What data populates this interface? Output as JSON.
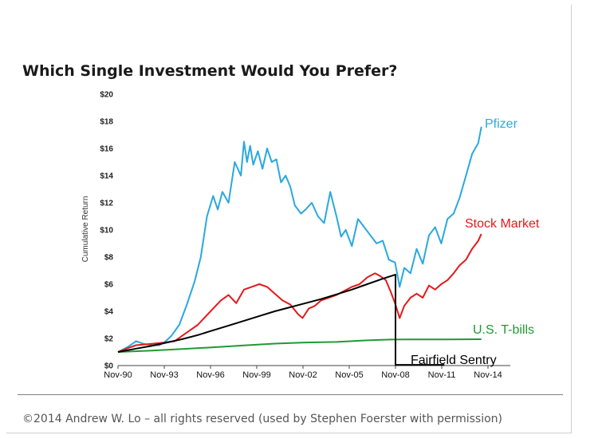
{
  "slide": {
    "title": "Which Single Investment Would You Prefer?",
    "footer": "©2014 Andrew W. Lo – all rights reserved (used by Stephen Foerster with permission)"
  },
  "chart_data": {
    "type": "line",
    "title": "Which Single Investment Would You Prefer?",
    "xlabel": "",
    "ylabel": "Cumulative Return",
    "x_ticks": [
      "Nov-90",
      "Nov-93",
      "Nov-96",
      "Nov-99",
      "Nov-02",
      "Nov-05",
      "Nov-08",
      "Nov-11",
      "Nov-14"
    ],
    "y_ticks": [
      "$0",
      "$2",
      "$4",
      "$6",
      "$8",
      "$10",
      "$12",
      "$14",
      "$16",
      "$18",
      "$20"
    ],
    "xlim": [
      1990.83,
      2014.83
    ],
    "ylim": [
      0,
      20
    ],
    "grid": false,
    "legend": "labels at line ends",
    "series": [
      {
        "name": "Pfizer",
        "color": "#2aa8df",
        "x": [
          1990.83,
          1991.5,
          1992.0,
          1992.5,
          1993.0,
          1993.5,
          1993.83,
          1994.3,
          1994.8,
          1995.3,
          1995.8,
          1996.2,
          1996.6,
          1997.0,
          1997.3,
          1997.6,
          1998.0,
          1998.4,
          1998.8,
          1999.0,
          1999.2,
          1999.4,
          1999.6,
          1999.9,
          2000.2,
          2000.5,
          2000.8,
          2001.1,
          2001.4,
          2001.7,
          2002.0,
          2002.3,
          2002.7,
          2003.0,
          2003.4,
          2003.8,
          2004.2,
          2004.6,
          2005.0,
          2005.3,
          2005.6,
          2006.0,
          2006.4,
          2006.8,
          2007.2,
          2007.6,
          2008.0,
          2008.4,
          2008.8,
          2009.1,
          2009.4,
          2009.8,
          2010.2,
          2010.6,
          2011.0,
          2011.4,
          2011.8,
          2012.2,
          2012.6,
          2013.0,
          2013.4,
          2013.8,
          2014.2,
          2014.4
        ],
        "y": [
          1.0,
          1.4,
          1.8,
          1.6,
          1.5,
          1.5,
          1.7,
          2.2,
          3.0,
          4.5,
          6.2,
          8.0,
          11.0,
          12.5,
          11.5,
          12.8,
          12.0,
          15.0,
          14.0,
          16.5,
          15.0,
          16.2,
          14.8,
          15.8,
          14.5,
          16.0,
          15.0,
          15.2,
          13.5,
          14.0,
          13.2,
          11.8,
          11.2,
          11.5,
          12.0,
          11.0,
          10.5,
          12.8,
          11.0,
          9.5,
          10.0,
          8.8,
          10.8,
          10.2,
          9.6,
          9.0,
          9.2,
          7.8,
          7.6,
          5.8,
          7.2,
          6.8,
          8.6,
          7.5,
          9.6,
          10.2,
          9.0,
          10.8,
          11.2,
          12.4,
          14.0,
          15.6,
          16.4,
          17.6
        ]
      },
      {
        "name": "Stock Market",
        "color": "#e3191b",
        "x": [
          1990.83,
          1991.5,
          1992.0,
          1993.0,
          1993.83,
          1994.5,
          1995.0,
          1995.5,
          1996.0,
          1996.5,
          1997.0,
          1997.5,
          1998.0,
          1998.5,
          1999.0,
          1999.5,
          2000.0,
          2000.5,
          2001.0,
          2001.5,
          2002.0,
          2002.5,
          2002.8,
          2003.2,
          2003.6,
          2004.0,
          2004.5,
          2005.0,
          2005.5,
          2006.0,
          2006.5,
          2007.0,
          2007.5,
          2007.83,
          2008.2,
          2008.5,
          2008.8,
          2009.1,
          2009.4,
          2009.8,
          2010.2,
          2010.6,
          2011.0,
          2011.4,
          2011.8,
          2012.2,
          2012.6,
          2013.0,
          2013.4,
          2013.8,
          2014.2,
          2014.4
        ],
        "y": [
          1.0,
          1.3,
          1.5,
          1.6,
          1.7,
          1.8,
          2.2,
          2.6,
          3.0,
          3.6,
          4.2,
          4.8,
          5.2,
          4.6,
          5.6,
          5.8,
          6.0,
          5.8,
          5.3,
          4.8,
          4.5,
          3.8,
          3.5,
          4.2,
          4.4,
          4.8,
          5.0,
          5.2,
          5.5,
          5.8,
          6.0,
          6.5,
          6.8,
          6.6,
          6.3,
          5.5,
          4.6,
          3.5,
          4.4,
          5.0,
          5.3,
          5.0,
          5.9,
          5.6,
          6.0,
          6.3,
          6.8,
          7.4,
          7.8,
          8.6,
          9.2,
          9.7
        ]
      },
      {
        "name": "Fairfield Sentry",
        "color": "#000000",
        "x": [
          1990.83,
          1992.0,
          1993.0,
          1994.0,
          1995.0,
          1996.0,
          1997.0,
          1998.0,
          1999.0,
          2000.0,
          2001.0,
          2002.0,
          2003.0,
          2004.0,
          2005.0,
          2006.0,
          2007.0,
          2008.0,
          2008.83,
          2008.83,
          2012.0
        ],
        "y": [
          1.0,
          1.25,
          1.45,
          1.7,
          1.95,
          2.25,
          2.6,
          2.95,
          3.3,
          3.65,
          4.0,
          4.3,
          4.6,
          4.9,
          5.25,
          5.6,
          6.0,
          6.4,
          6.7,
          0.05,
          0.05
        ]
      },
      {
        "name": "U.S. T-bills",
        "color": "#1f9a34",
        "x": [
          1990.83,
          1993.0,
          1995.0,
          1997.0,
          1999.0,
          2001.0,
          2003.0,
          2005.0,
          2007.0,
          2008.5,
          2010.0,
          2012.0,
          2014.4
        ],
        "y": [
          1.0,
          1.1,
          1.22,
          1.35,
          1.48,
          1.62,
          1.7,
          1.74,
          1.86,
          1.92,
          1.93,
          1.93,
          1.94
        ]
      }
    ]
  }
}
